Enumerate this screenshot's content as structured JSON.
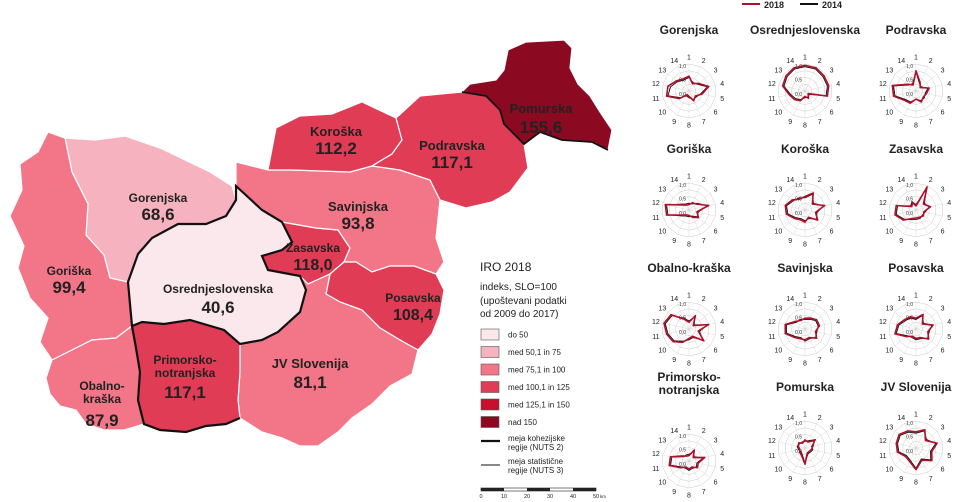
{
  "map": {
    "regions": [
      {
        "id": "pomurska",
        "name": "Pomurska",
        "value": "155,6",
        "fill": "#8b0a22"
      },
      {
        "id": "podravska",
        "name": "Podravska",
        "value": "117,1",
        "fill": "#e03c55"
      },
      {
        "id": "koroska",
        "name": "Koroška",
        "value": "112,2",
        "fill": "#e03c55"
      },
      {
        "id": "savinjska",
        "name": "Savinjska",
        "value": "93,8",
        "fill": "#f27588"
      },
      {
        "id": "zasavska",
        "name": "Zasavska",
        "value": "118,0",
        "fill": "#e03c55"
      },
      {
        "id": "posavska",
        "name": "Posavska",
        "value": "108,4",
        "fill": "#e03c55"
      },
      {
        "id": "jv-slovenija",
        "name": "JV Slovenija",
        "value": "81,1",
        "fill": "#f27588"
      },
      {
        "id": "osrednjeslovenska",
        "name": "Osrednjeslovenska",
        "value": "40,6",
        "fill": "#fbe8ec"
      },
      {
        "id": "gorenjska",
        "name": "Gorenjska",
        "value": "68,6",
        "fill": "#f6b3bf"
      },
      {
        "id": "goriska",
        "name": "Goriška",
        "value": "99,4",
        "fill": "#f27588"
      },
      {
        "id": "primorsko-notranjska",
        "name": "Primorsko-\nnotranjska",
        "value": "117,1",
        "fill": "#e03c55"
      },
      {
        "id": "obalno-kraska",
        "name": "Obalno-\nkraška",
        "value": "87,9",
        "fill": "#f27588"
      }
    ]
  },
  "legend": {
    "title": "IRO 2018",
    "subtitle": "indeks, SLO=100",
    "note_1": "(upoštevani podatki",
    "note_2": "od 2009 do 2017)",
    "classes": [
      {
        "label": "do 50",
        "color": "#fbe8ec"
      },
      {
        "label": "med 50,1 in 75",
        "color": "#f6b3bf"
      },
      {
        "label": "med 75,1 in 100",
        "color": "#f27588"
      },
      {
        "label": "med 100,1 in 125",
        "color": "#e03c55"
      },
      {
        "label": "med 125,1 in 150",
        "color": "#c8102e"
      },
      {
        "label": "nad 150",
        "color": "#8b0a22"
      }
    ],
    "boundary_nuts2_1": "meja kohezijske",
    "boundary_nuts2_2": "regije (NUTS 2)",
    "boundary_nuts3_1": "meja statistične",
    "boundary_nuts3_2": "regije (NUTS 3)"
  },
  "scalebar": {
    "ticks": [
      "0",
      "10",
      "20",
      "30",
      "40",
      "50"
    ],
    "unit": "km"
  },
  "radar_legend": {
    "series_2018": "2018",
    "series_2014": "2014",
    "color_2018": "#b0102a",
    "color_2014": "#111111"
  },
  "radar_axes": [
    "1",
    "2",
    "3",
    "4",
    "5",
    "6",
    "7",
    "8",
    "9",
    "10",
    "11",
    "12",
    "13",
    "14"
  ],
  "radar_rings": [
    "1,0",
    "0,5",
    "0,0"
  ],
  "chart_data": [
    {
      "type": "radar",
      "title": "Gorenjska",
      "categories": [
        "1",
        "2",
        "3",
        "4",
        "5",
        "6",
        "7",
        "8",
        "9",
        "10",
        "11",
        "12",
        "13",
        "14"
      ],
      "series": [
        {
          "name": "2018",
          "values": [
            0.55,
            0.3,
            0.45,
            0.75,
            0.5,
            0.3,
            0.4,
            0.2,
            0.15,
            0.45,
            0.85,
            0.8,
            0.6,
            0.5
          ]
        },
        {
          "name": "2014",
          "values": [
            0.5,
            0.35,
            0.4,
            0.7,
            0.45,
            0.35,
            0.35,
            0.25,
            0.2,
            0.4,
            0.8,
            0.7,
            0.55,
            0.45
          ]
        }
      ]
    },
    {
      "type": "radar",
      "title": "Osrednjeslovenska",
      "categories": [
        "1",
        "2",
        "3",
        "4",
        "5",
        "6",
        "7",
        "8",
        "9",
        "10",
        "11",
        "12",
        "13",
        "14"
      ],
      "series": [
        {
          "name": "2018",
          "values": [
            0.95,
            0.95,
            0.9,
            0.9,
            0.85,
            0.15,
            0.3,
            0.2,
            0.4,
            0.5,
            0.6,
            0.85,
            0.9,
            0.95
          ]
        },
        {
          "name": "2014",
          "values": [
            0.9,
            0.9,
            0.85,
            0.85,
            0.8,
            0.2,
            0.25,
            0.25,
            0.35,
            0.45,
            0.55,
            0.8,
            0.85,
            0.9
          ]
        }
      ]
    },
    {
      "type": "radar",
      "title": "Podravska",
      "categories": [
        "1",
        "2",
        "3",
        "4",
        "5",
        "6",
        "7",
        "8",
        "9",
        "10",
        "11",
        "12",
        "13",
        "14"
      ],
      "series": [
        {
          "name": "2018",
          "values": [
            0.75,
            0.35,
            0.2,
            0.5,
            0.4,
            0.35,
            0.45,
            0.3,
            0.5,
            0.55,
            0.85,
            0.9,
            0.4,
            0.25
          ]
        },
        {
          "name": "2014",
          "values": [
            0.7,
            0.3,
            0.25,
            0.45,
            0.35,
            0.4,
            0.4,
            0.3,
            0.45,
            0.5,
            0.8,
            0.85,
            0.35,
            0.3
          ]
        }
      ]
    },
    {
      "type": "radar",
      "title": "Goriška",
      "categories": [
        "1",
        "2",
        "3",
        "4",
        "5",
        "6",
        "7",
        "8",
        "9",
        "10",
        "11",
        "12",
        "13",
        "14"
      ],
      "series": [
        {
          "name": "2018",
          "values": [
            0.2,
            0.3,
            0.35,
            0.75,
            0.3,
            0.45,
            0.3,
            0.2,
            0.2,
            0.3,
            0.85,
            0.9,
            0.3,
            0.2
          ]
        },
        {
          "name": "2014",
          "values": [
            0.25,
            0.25,
            0.4,
            0.7,
            0.35,
            0.4,
            0.25,
            0.25,
            0.25,
            0.35,
            0.8,
            0.85,
            0.35,
            0.25
          ]
        }
      ]
    },
    {
      "type": "radar",
      "title": "Koroška",
      "categories": [
        "1",
        "2",
        "3",
        "4",
        "5",
        "6",
        "7",
        "8",
        "9",
        "10",
        "11",
        "12",
        "13",
        "14"
      ],
      "series": [
        {
          "name": "2018",
          "values": [
            0.5,
            0.7,
            0.35,
            0.75,
            0.4,
            0.6,
            0.3,
            0.45,
            0.4,
            0.5,
            0.7,
            0.75,
            0.6,
            0.45
          ]
        },
        {
          "name": "2014",
          "values": [
            0.45,
            0.65,
            0.4,
            0.7,
            0.45,
            0.55,
            0.35,
            0.4,
            0.35,
            0.45,
            0.65,
            0.7,
            0.55,
            0.5
          ]
        }
      ]
    },
    {
      "type": "radar",
      "title": "Zasavska",
      "categories": [
        "1",
        "2",
        "3",
        "4",
        "5",
        "6",
        "7",
        "8",
        "9",
        "10",
        "11",
        "12",
        "13",
        "14"
      ],
      "series": [
        {
          "name": "2018",
          "values": [
            0.15,
            0.95,
            0.35,
            0.55,
            0.3,
            0.35,
            0.3,
            0.3,
            0.35,
            0.6,
            0.8,
            0.75,
            0.2,
            0.3
          ]
        },
        {
          "name": "2014",
          "values": [
            0.2,
            0.9,
            0.4,
            0.5,
            0.35,
            0.3,
            0.35,
            0.35,
            0.4,
            0.55,
            0.75,
            0.7,
            0.25,
            0.35
          ]
        }
      ]
    },
    {
      "type": "radar",
      "title": "Obalno-kraška",
      "categories": [
        "1",
        "2",
        "3",
        "4",
        "5",
        "6",
        "7",
        "8",
        "9",
        "10",
        "11",
        "12",
        "13",
        "14"
      ],
      "series": [
        {
          "name": "2018",
          "values": [
            0.25,
            0.55,
            0.2,
            0.75,
            0.35,
            0.7,
            0.3,
            0.35,
            0.55,
            0.75,
            0.85,
            0.95,
            0.85,
            0.4
          ]
        },
        {
          "name": "2014",
          "values": [
            0.3,
            0.5,
            0.25,
            0.7,
            0.4,
            0.65,
            0.35,
            0.4,
            0.5,
            0.7,
            0.8,
            0.9,
            0.8,
            0.45
          ]
        }
      ]
    },
    {
      "type": "radar",
      "title": "Savinjska",
      "categories": [
        "1",
        "2",
        "3",
        "4",
        "5",
        "6",
        "7",
        "8",
        "9",
        "10",
        "11",
        "12",
        "13",
        "14"
      ],
      "series": [
        {
          "name": "2018",
          "values": [
            0.4,
            0.45,
            0.55,
            0.55,
            0.4,
            0.55,
            0.35,
            0.4,
            0.4,
            0.5,
            0.75,
            0.75,
            0.45,
            0.35
          ]
        },
        {
          "name": "2014",
          "values": [
            0.35,
            0.4,
            0.5,
            0.5,
            0.45,
            0.5,
            0.4,
            0.45,
            0.35,
            0.45,
            0.7,
            0.7,
            0.4,
            0.4
          ]
        }
      ]
    },
    {
      "type": "radar",
      "title": "Posavska",
      "categories": [
        "1",
        "2",
        "3",
        "4",
        "5",
        "6",
        "7",
        "8",
        "9",
        "10",
        "11",
        "12",
        "13",
        "14"
      ],
      "series": [
        {
          "name": "2018",
          "values": [
            0.4,
            0.6,
            0.3,
            0.65,
            0.45,
            0.6,
            0.35,
            0.35,
            0.3,
            0.45,
            0.8,
            0.7,
            0.55,
            0.5
          ]
        },
        {
          "name": "2014",
          "values": [
            0.35,
            0.55,
            0.35,
            0.6,
            0.5,
            0.55,
            0.4,
            0.4,
            0.35,
            0.4,
            0.75,
            0.65,
            0.5,
            0.45
          ]
        }
      ]
    },
    {
      "type": "radar",
      "title": "Primorsko-notranjska",
      "categories": [
        "1",
        "2",
        "3",
        "4",
        "5",
        "6",
        "7",
        "8",
        "9",
        "10",
        "11",
        "12",
        "13",
        "14"
      ],
      "series": [
        {
          "name": "2018",
          "values": [
            0.2,
            0.45,
            0.2,
            0.6,
            0.35,
            0.4,
            0.25,
            0.3,
            0.25,
            0.4,
            0.75,
            0.7,
            0.3,
            0.2
          ]
        },
        {
          "name": "2014",
          "values": [
            0.25,
            0.4,
            0.25,
            0.55,
            0.3,
            0.35,
            0.3,
            0.35,
            0.3,
            0.35,
            0.7,
            0.65,
            0.25,
            0.25
          ]
        }
      ]
    },
    {
      "type": "radar",
      "title": "Pomurska",
      "categories": [
        "1",
        "2",
        "3",
        "4",
        "5",
        "6",
        "7",
        "8",
        "9",
        "10",
        "11",
        "12",
        "13",
        "14"
      ],
      "series": [
        {
          "name": "2018",
          "values": [
            0.3,
            0.25,
            0.45,
            0.3,
            0.25,
            0.2,
            0.2,
            0.6,
            0.3,
            0.25,
            0.2,
            0.25,
            0.3,
            0.2
          ]
        },
        {
          "name": "2014",
          "values": [
            0.25,
            0.3,
            0.5,
            0.25,
            0.3,
            0.25,
            0.25,
            0.55,
            0.25,
            0.2,
            0.25,
            0.3,
            0.25,
            0.25
          ]
        }
      ]
    },
    {
      "type": "radar",
      "title": "JV Slovenija",
      "categories": [
        "1",
        "2",
        "3",
        "4",
        "5",
        "6",
        "7",
        "8",
        "9",
        "10",
        "11",
        "12",
        "13",
        "14"
      ],
      "series": [
        {
          "name": "2018",
          "values": [
            0.6,
            0.75,
            0.45,
            0.8,
            0.6,
            0.75,
            0.5,
            0.8,
            0.55,
            0.5,
            0.7,
            0.75,
            0.8,
            0.7
          ]
        },
        {
          "name": "2014",
          "values": [
            0.55,
            0.7,
            0.5,
            0.75,
            0.55,
            0.7,
            0.45,
            0.75,
            0.5,
            0.45,
            0.65,
            0.7,
            0.75,
            0.65
          ]
        }
      ]
    }
  ]
}
